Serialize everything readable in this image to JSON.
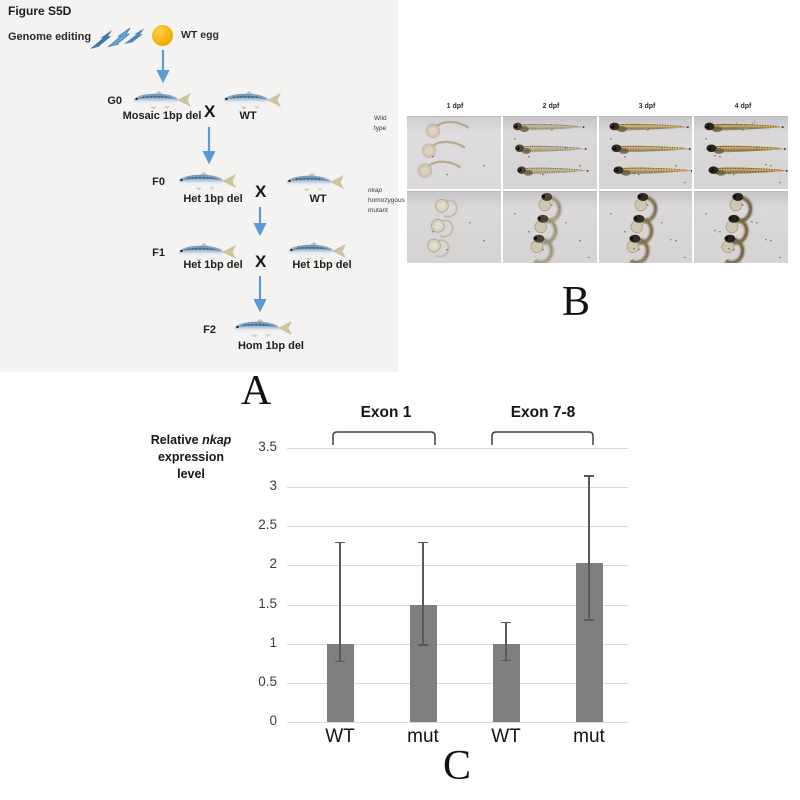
{
  "figure_title": "Figure S5D",
  "colors": {
    "arrow_blue": "#5B9BD5",
    "bolt_dark": "#3f74ad",
    "bolt_light": "#6ba3d6",
    "egg_orange": "#F2A900"
  },
  "panel_a": {
    "label": "A",
    "genome_editing_label": "Genome editing",
    "egg_label": "WT egg",
    "cross_symbol": "X",
    "rows": [
      {
        "gen": "G0",
        "left_label": "Mosaic 1bp del",
        "right_label": "WT"
      },
      {
        "gen": "F0",
        "left_label": "Het 1bp del",
        "right_label": "WT"
      },
      {
        "gen": "F1",
        "left_label": "Het 1bp del",
        "right_label": "Het 1bp del"
      },
      {
        "gen": "F2",
        "left_label": "Hom 1bp del"
      }
    ]
  },
  "panel_b": {
    "label": "B",
    "col_headers": [
      "1 dpf",
      "2 dpf",
      "3 dpf",
      "4 dpf"
    ],
    "row1_lines": [
      "Wild",
      "type"
    ],
    "row2_gene": "nkap",
    "row2_line2": "homozygous",
    "row2_line3": "mutant"
  },
  "panel_c": {
    "label": "C",
    "ytitle_prefix": "Relative",
    "ytitle_gene": "nkap",
    "ytitle_line2": "expression",
    "ytitle_line3": "level"
  },
  "chart_data": {
    "type": "bar",
    "title": "",
    "ylabel": "Relative nkap expression level",
    "groups": [
      "Exon 1",
      "Exon 7-8"
    ],
    "categories": [
      "WT",
      "mut",
      "WT",
      "mut"
    ],
    "values": [
      1.0,
      1.5,
      1.0,
      2.03
    ],
    "error_low": [
      0.77,
      0.98,
      0.78,
      1.3
    ],
    "error_high": [
      2.3,
      2.3,
      1.28,
      3.15
    ],
    "yticks": [
      0,
      0.5,
      1,
      1.5,
      2,
      2.5,
      3,
      3.5
    ],
    "ytick_labels": [
      "0",
      "0.5",
      "1",
      "1.5",
      "2",
      "2.5",
      "3",
      "3.5"
    ],
    "ylim": [
      0,
      3.5
    ],
    "grid": true,
    "legend": "none",
    "bar_color": "#7f7f7f",
    "grid_color": "#d9d9d9",
    "error_color": "#595959"
  }
}
